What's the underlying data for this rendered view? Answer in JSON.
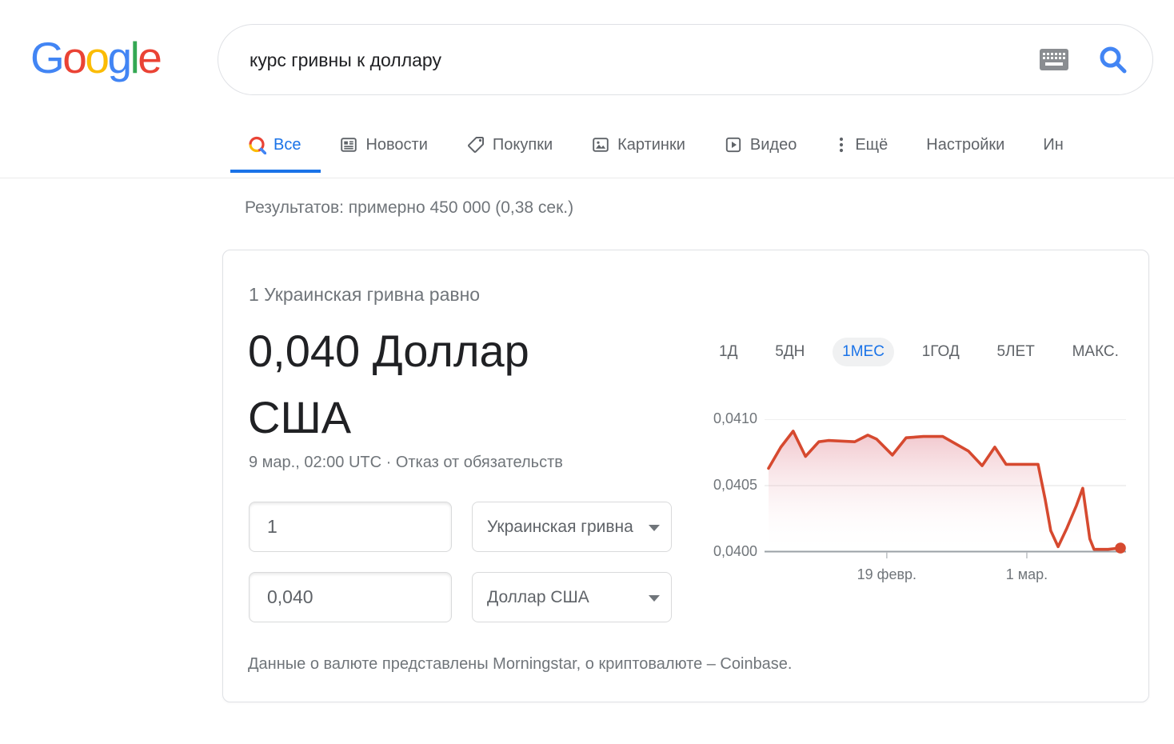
{
  "logo": {
    "letters": [
      {
        "ch": "G",
        "color": "#4285F4"
      },
      {
        "ch": "o",
        "color": "#EA4335"
      },
      {
        "ch": "o",
        "color": "#FBBC05"
      },
      {
        "ch": "g",
        "color": "#4285F4"
      },
      {
        "ch": "l",
        "color": "#34A853"
      },
      {
        "ch": "e",
        "color": "#EA4335"
      }
    ]
  },
  "search": {
    "query": "курс гривны к доллару",
    "keyboard_icon": "keyboard-icon",
    "search_icon": "search-icon",
    "accent": "#4285F4"
  },
  "tabs": {
    "items": [
      {
        "label": "Все",
        "icon": "search-icon",
        "active": true
      },
      {
        "label": "Новости",
        "icon": "news-icon"
      },
      {
        "label": "Покупки",
        "icon": "tag-icon"
      },
      {
        "label": "Картинки",
        "icon": "image-icon"
      },
      {
        "label": "Видео",
        "icon": "video-icon"
      },
      {
        "label": "Ещё",
        "icon": "more-vertical-icon"
      },
      {
        "label": "Настройки"
      },
      {
        "label": "Ин"
      }
    ],
    "active_color": "#1a73e8"
  },
  "stats": {
    "text": "Результатов: примерно 450 000 (0,38 сек.)"
  },
  "converter": {
    "heading": "1 Украинская гривна равно",
    "result": "0,040 Доллар США",
    "timestamp": "9 мар., 02:00 UTC",
    "separator": " · ",
    "disclaimer_link": "Отказ от обязательств",
    "amount_from": "1",
    "amount_to": "0,040",
    "currency_from": "Украинская гривна",
    "currency_to": "Доллар США",
    "footer": "Данные о валюте представлены Morningstar, о криптовалюте – Coinbase."
  },
  "chart_data": {
    "type": "area",
    "ranges": [
      {
        "label": "1Д"
      },
      {
        "label": "5ДН"
      },
      {
        "label": "1МЕС"
      },
      {
        "label": "1ГОД"
      },
      {
        "label": "5ЛЕТ"
      },
      {
        "label": "МАКС."
      }
    ],
    "active_range_index": 2,
    "y_ticks": [
      {
        "label": "0,0410",
        "value": 0.041
      },
      {
        "label": "0,0405",
        "value": 0.0405
      },
      {
        "label": "0,0400",
        "value": 0.04
      }
    ],
    "ylim": [
      0.04,
      0.041
    ],
    "x_ticks": [
      {
        "label": "19 февр.",
        "pct": 33.6
      },
      {
        "label": "1 мар.",
        "pct": 73.4
      }
    ],
    "grid": true,
    "line_color": "#d6492f",
    "fill_top": "rgba(208,62,83,0.30)",
    "fill_bottom": "rgba(255,255,255,0)",
    "axis_color": "#9aa0a6",
    "grid_color": "#ececec",
    "endpoint_marker": true,
    "points_pct_value": [
      [
        0,
        0.04063
      ],
      [
        3.5,
        0.04079
      ],
      [
        7,
        0.04091
      ],
      [
        10.5,
        0.04072
      ],
      [
        14.3,
        0.04083
      ],
      [
        17,
        0.04084
      ],
      [
        24.5,
        0.04083
      ],
      [
        28.2,
        0.04088
      ],
      [
        30.7,
        0.04085
      ],
      [
        35.2,
        0.04073
      ],
      [
        39.1,
        0.04086
      ],
      [
        44,
        0.04087
      ],
      [
        49.5,
        0.04087
      ],
      [
        56.8,
        0.04076
      ],
      [
        60.7,
        0.04065
      ],
      [
        64.3,
        0.04079
      ],
      [
        67.5,
        0.04066
      ],
      [
        76.6,
        0.04066
      ],
      [
        78.6,
        0.0404
      ],
      [
        80.2,
        0.04016
      ],
      [
        82.3,
        0.04004
      ],
      [
        84.8,
        0.04018
      ],
      [
        87.5,
        0.04035
      ],
      [
        89.3,
        0.04048
      ],
      [
        91.3,
        0.0401
      ],
      [
        92.5,
        0.04002
      ],
      [
        96.5,
        0.04002
      ],
      [
        100,
        0.04003
      ]
    ]
  }
}
